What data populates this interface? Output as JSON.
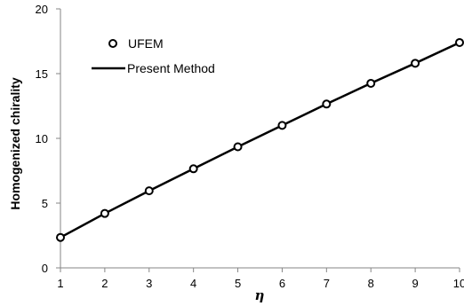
{
  "chart_data": {
    "type": "line",
    "title": "",
    "xlabel": "η",
    "ylabel": "Homogenized chirality",
    "xlim": [
      1,
      10
    ],
    "ylim": [
      0,
      20
    ],
    "xticks": [
      1,
      2,
      3,
      4,
      5,
      6,
      7,
      8,
      9,
      10
    ],
    "yticks": [
      0,
      5,
      10,
      15,
      20
    ],
    "grid": false,
    "legend_position": "top-left",
    "series": [
      {
        "name": "UFEM",
        "style": "markers",
        "marker": "open-circle",
        "x": [
          1,
          2,
          3,
          4,
          5,
          6,
          7,
          8,
          9,
          10
        ],
        "y": [
          2.35,
          4.2,
          5.95,
          7.65,
          9.35,
          11.0,
          12.65,
          14.25,
          15.8,
          17.4
        ]
      },
      {
        "name": "Present Method",
        "style": "line",
        "x": [
          1,
          2,
          3,
          4,
          5,
          6,
          7,
          8,
          9,
          10
        ],
        "y": [
          2.35,
          4.2,
          5.95,
          7.65,
          9.35,
          11.0,
          12.65,
          14.25,
          15.8,
          17.4
        ]
      }
    ]
  },
  "colors": {
    "series": "#000000",
    "axis": "#868686",
    "background": "#ffffff"
  }
}
